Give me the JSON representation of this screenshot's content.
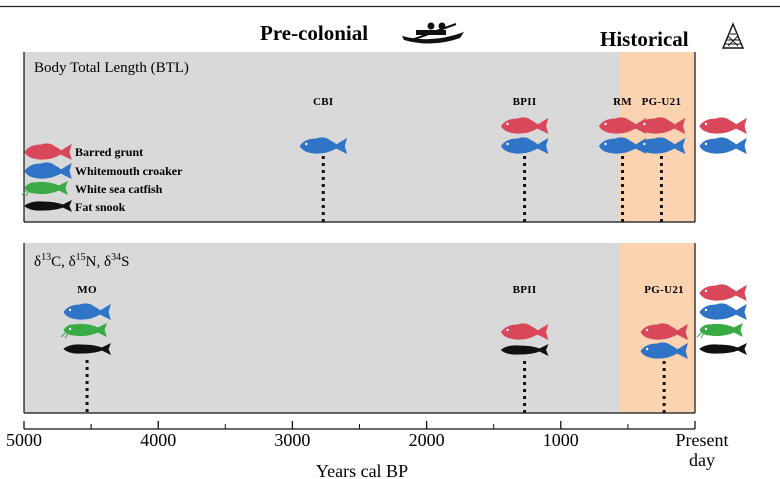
{
  "periods": {
    "precolonial": "Pre-colonial",
    "historical": "Historical",
    "precolonial_icon": "canoe-icon",
    "historical_icon": "net-bag-icon"
  },
  "panels": [
    {
      "id": "btl",
      "title": "Body Total Length (BTL)",
      "sites": [
        {
          "name": "CBI",
          "year_bp": 2770,
          "species": [
            "whitemouth"
          ]
        },
        {
          "name": "BPII",
          "year_bp": 1270,
          "species": [
            "barred",
            "whitemouth"
          ]
        },
        {
          "name": "RM",
          "year_bp": 540,
          "species": [
            "barred",
            "whitemouth"
          ]
        },
        {
          "name": "PG-U21",
          "year_bp": 250,
          "species": [
            "barred",
            "whitemouth"
          ]
        },
        {
          "name": "",
          "year_bp": -50,
          "species": [
            "barred",
            "whitemouth"
          ],
          "present": true
        }
      ]
    },
    {
      "id": "iso",
      "title_parts": {
        "delta": "δ",
        "c_mass": "13",
        "c": "C",
        "n_mass": "15",
        "n": "N",
        "s_mass": "34",
        "s": "S",
        "sep": ", "
      },
      "sites": [
        {
          "name": "MO",
          "year_bp": 4530,
          "species": [
            "whitemouth",
            "catfish",
            "snook"
          ]
        },
        {
          "name": "BPII",
          "year_bp": 1270,
          "species": [
            "barred",
            "snook"
          ]
        },
        {
          "name": "PG-U21",
          "year_bp": 230,
          "species": [
            "barred",
            "whitemouth"
          ]
        },
        {
          "name": "",
          "year_bp": -50,
          "species": [
            "barred",
            "whitemouth",
            "catfish",
            "snook"
          ],
          "present": true
        }
      ]
    }
  ],
  "legend": [
    {
      "key": "barred",
      "label": "Barred grunt",
      "color": "#d9475a"
    },
    {
      "key": "whitemouth",
      "label": "Whitemouth croaker",
      "color": "#2f74c6"
    },
    {
      "key": "catfish",
      "label": "White sea catfish",
      "color": "#3aaa45"
    },
    {
      "key": "snook",
      "label": "Fat snook",
      "color": "#111111"
    }
  ],
  "axis": {
    "title": "Years cal BP",
    "ticks": [
      5000,
      4000,
      3000,
      2000,
      1000
    ],
    "tick_labels": [
      "5000",
      "4000",
      "3000",
      "2000",
      "1000"
    ],
    "present_line1": "Present",
    "present_line2": "day",
    "range": [
      5000,
      0
    ],
    "historical_start_bp": 560
  },
  "colors": {
    "panel_bg": "#d9d9d9",
    "historical_bg": "#fbd3b0",
    "axis": "#111111"
  }
}
